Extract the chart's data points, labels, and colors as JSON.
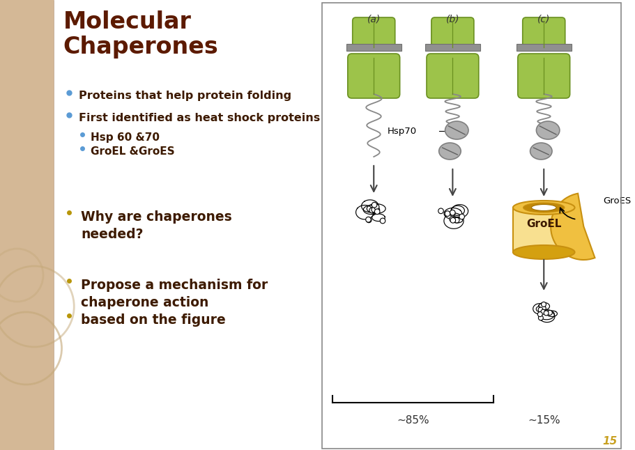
{
  "title": "Molecular\nChaperones",
  "title_color": "#5C1A00",
  "bg_color": "#FFFFFF",
  "sidebar_color": "#D4B896",
  "circle_color": "#C4A878",
  "bullet_color_teal": "#5B9BD5",
  "bullet_color_gold": "#B8960A",
  "text_color_dark": "#3D1A00",
  "bullet1": "Proteins that help protein folding",
  "bullet2": "First identified as heat shock proteins",
  "sub_bullet1": "Hsp 60 &70",
  "sub_bullet2": "GroEL &GroES",
  "question1": "Why are chaperones\nneeded?",
  "question2a": "Propose a mechanism for\nchaperone action",
  "question2b": "based on the figure",
  "label_a": "(a)",
  "label_b": "(b)",
  "label_c": "(c)",
  "label_hsp70": "Hsp70",
  "label_groel": "GroEL",
  "label_groes": "GroES",
  "label_85": "~85%",
  "label_15": "~15%",
  "green_light": "#9DC34A",
  "green_dark": "#6A9020",
  "gray_fill": "#B0B0B0",
  "gray_edge": "#808080",
  "gold_fill": "#F0C040",
  "gold_light": "#F8E090",
  "gold_dark": "#C89010",
  "bar_color": "#909090",
  "page_num": "15"
}
